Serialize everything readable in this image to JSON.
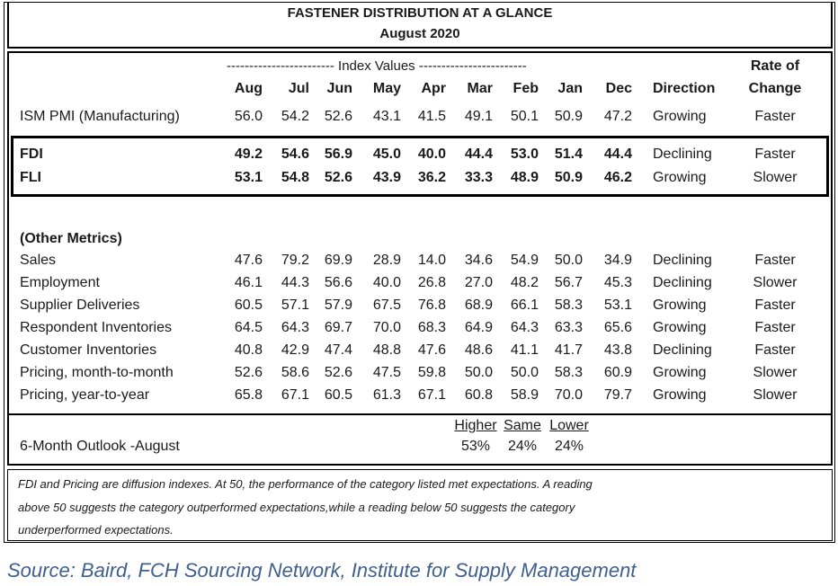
{
  "title": "FASTENER DISTRIBUTION AT A GLANCE",
  "subtitle": "August 2020",
  "index_values_label": "------------------------ Index Values ------------------------",
  "columns": [
    "Aug",
    "Jul",
    "Jun",
    "May",
    "Apr",
    "Mar",
    "Feb",
    "Jan",
    "Dec"
  ],
  "direction_label": "Direction",
  "rate_label_line1": "Rate of",
  "rate_label_line2": "Change",
  "ism": {
    "label": "ISM PMI (Manufacturing)",
    "values": [
      "56.0",
      "54.2",
      "52.6",
      "43.1",
      "41.5",
      "49.1",
      "50.1",
      "50.9",
      "47.2"
    ],
    "direction": "Growing",
    "rate": "Faster"
  },
  "highlight": [
    {
      "label": "FDI",
      "values": [
        "49.2",
        "54.6",
        "56.9",
        "45.0",
        "40.0",
        "44.4",
        "53.0",
        "51.4",
        "44.4"
      ],
      "direction": "Declining",
      "rate": "Faster"
    },
    {
      "label": "FLI",
      "values": [
        "53.1",
        "54.8",
        "52.6",
        "43.9",
        "36.2",
        "33.3",
        "48.9",
        "50.9",
        "46.2"
      ],
      "direction": "Growing",
      "rate": "Slower"
    }
  ],
  "other_label": "(Other Metrics)",
  "other": [
    {
      "label": "Sales",
      "values": [
        "47.6",
        "79.2",
        "69.9",
        "28.9",
        "14.0",
        "34.6",
        "54.9",
        "50.0",
        "34.9"
      ],
      "direction": "Declining",
      "rate": "Faster"
    },
    {
      "label": "Employment",
      "values": [
        "46.1",
        "44.3",
        "56.6",
        "40.0",
        "26.8",
        "27.0",
        "48.2",
        "56.7",
        "45.3"
      ],
      "direction": "Declining",
      "rate": "Slower"
    },
    {
      "label": "Supplier Deliveries",
      "values": [
        "60.5",
        "57.1",
        "57.9",
        "67.5",
        "76.8",
        "68.9",
        "66.1",
        "58.3",
        "53.1"
      ],
      "direction": "Growing",
      "rate": "Faster"
    },
    {
      "label": "Respondent Inventories",
      "values": [
        "64.5",
        "64.3",
        "69.7",
        "70.0",
        "68.3",
        "64.9",
        "64.3",
        "63.3",
        "65.6"
      ],
      "direction": "Growing",
      "rate": "Faster"
    },
    {
      "label": "Customer Inventories",
      "values": [
        "40.8",
        "42.9",
        "47.4",
        "48.8",
        "47.6",
        "48.6",
        "41.1",
        "41.7",
        "43.8"
      ],
      "direction": "Declining",
      "rate": "Faster"
    },
    {
      "label": "Pricing, month-to-month",
      "values": [
        "52.6",
        "58.6",
        "52.6",
        "47.5",
        "59.8",
        "50.0",
        "50.0",
        "58.3",
        "60.9"
      ],
      "direction": "Growing",
      "rate": "Slower"
    },
    {
      "label": "Pricing, year-to-year",
      "values": [
        "65.8",
        "67.1",
        "60.5",
        "61.3",
        "67.1",
        "60.8",
        "58.9",
        "70.0",
        "79.7"
      ],
      "direction": "Growing",
      "rate": "Slower"
    }
  ],
  "outlook": {
    "label": "6-Month Outlook -August",
    "headers": [
      "Higher",
      "Same",
      "Lower"
    ],
    "values": [
      "53%",
      "24%",
      "24%"
    ]
  },
  "note": [
    "FDI and Pricing are diffusion indexes.  At 50, the performance of the category listed met expectations. A reading",
    "above 50 suggests the category outperformed expectations,while a reading below 50 suggests the category",
    "underperformed expectations."
  ],
  "source": "Source: Baird, FCH Sourcing Network, Institute for Supply Management"
}
